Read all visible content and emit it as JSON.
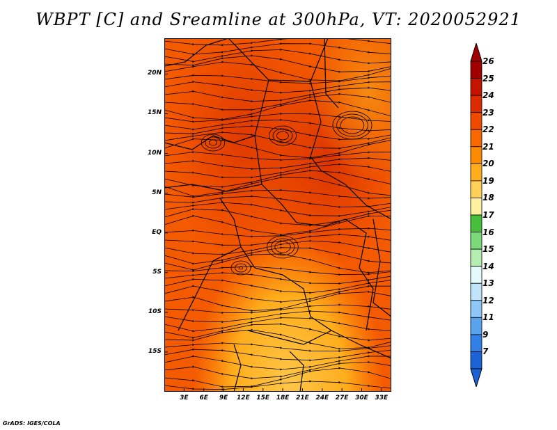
{
  "title": "WBPT [C] and Sreamline at 300hPa, VT: 2020052921",
  "footer": "GrADS: IGES/COLA",
  "map": {
    "lat_labels": [
      "20N",
      "15N",
      "10N",
      "5N",
      "EQ",
      "5S",
      "10S",
      "15S"
    ],
    "lat_values": [
      20,
      15,
      10,
      5,
      0,
      -5,
      -10,
      -15
    ],
    "lon_labels": [
      "3E",
      "6E",
      "9E",
      "12E",
      "15E",
      "18E",
      "21E",
      "24E",
      "27E",
      "30E",
      "33E"
    ],
    "lon_values": [
      3,
      6,
      9,
      12,
      15,
      18,
      21,
      24,
      27,
      30,
      33
    ],
    "lat_range": [
      -20,
      24.5
    ],
    "lon_range": [
      0,
      34.5
    ]
  },
  "colorbar": {
    "labels": [
      "26",
      "25",
      "24",
      "23",
      "22",
      "21",
      "20",
      "19",
      "18",
      "17",
      "16",
      "15",
      "14",
      "13",
      "12",
      "11",
      "9",
      "7"
    ],
    "colors": [
      "#a00000",
      "#c41400",
      "#de2a00",
      "#ee4a00",
      "#f86800",
      "#fc8a00",
      "#ffad1c",
      "#ffd05a",
      "#fff0a0",
      "#46bf3a",
      "#7cd97a",
      "#b4eeb0",
      "#e4fbfb",
      "#c2e4fb",
      "#8ec6f6",
      "#5aa2ee",
      "#3080e6",
      "#1a62d6"
    ],
    "top_color": "#a00000",
    "bottom_color": "#1a62d6"
  }
}
